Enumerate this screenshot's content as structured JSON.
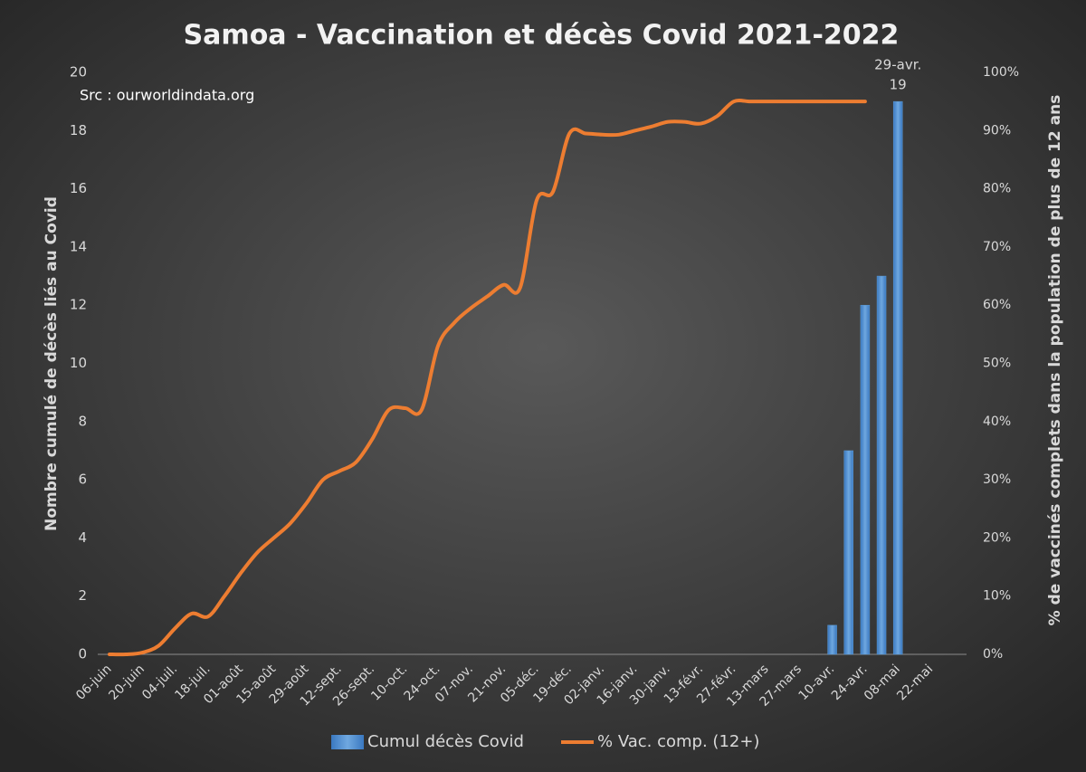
{
  "chart_data": {
    "type": "bar-line",
    "title": "Samoa - Vaccination et décès Covid 2021-2022",
    "subtitle": "Src : ourworldindata.org",
    "y_label": "Nombre cumulé de décès liés au Covid",
    "y2_label": "% de vaccinés complets dans  la population de plus de 12 ans",
    "annotation": "29-avr.",
    "categories": [
      "06-juin",
      null,
      "20-juin",
      null,
      "04-juil.",
      null,
      "18-juil.",
      null,
      "01-août",
      null,
      "15-août",
      null,
      "29-août",
      null,
      "12-sept.",
      null,
      "26-sept.",
      null,
      "10-oct.",
      null,
      "24-oct.",
      null,
      "07-nov.",
      null,
      "21-nov.",
      null,
      "05-déc.",
      null,
      "19-déc.",
      null,
      "02-janv.",
      null,
      "16-janv.",
      null,
      "30-janv.",
      null,
      "13-févr.",
      null,
      "27-févr.",
      null,
      "13-mars",
      null,
      "27-mars",
      null,
      "10-avr.",
      null,
      "24-avr.",
      null,
      "08-mai",
      null,
      "22-mai",
      null
    ],
    "series": [
      {
        "name": "Cumul décès Covid",
        "type": "bar",
        "color": "#5b9bd5",
        "values": [
          null,
          null,
          null,
          null,
          null,
          null,
          null,
          null,
          null,
          null,
          null,
          null,
          null,
          null,
          null,
          null,
          null,
          null,
          null,
          null,
          null,
          null,
          null,
          null,
          null,
          null,
          null,
          null,
          null,
          null,
          null,
          null,
          null,
          null,
          null,
          null,
          null,
          null,
          null,
          null,
          null,
          null,
          null,
          null,
          1,
          7,
          12,
          13,
          19,
          null,
          null,
          null
        ]
      },
      {
        "name": "% Vac. comp. (12+)",
        "type": "line",
        "axis": "y2",
        "color": "#ed7d31",
        "values": [
          0,
          0,
          0.3,
          1.5,
          4.5,
          7,
          6.5,
          10,
          14,
          17.5,
          20,
          22.5,
          26,
          30,
          31.5,
          33,
          37,
          42,
          42.3,
          42,
          53,
          57,
          59.5,
          61.5,
          63.5,
          63,
          78,
          79.5,
          89.5,
          89.5,
          89.3,
          89.3,
          90,
          90.7,
          91.5,
          91.5,
          91.2,
          92.5,
          95,
          95,
          95,
          95,
          95,
          95,
          95,
          95,
          95,
          null,
          null,
          null,
          null,
          null
        ]
      }
    ],
    "ylim": [
      0,
      20
    ],
    "yticks": [
      0,
      2,
      4,
      6,
      8,
      10,
      12,
      14,
      16,
      18,
      20
    ],
    "y2lim": [
      0,
      100
    ],
    "y2ticks": [
      {
        "value": 0,
        "label": "0%"
      },
      {
        "value": 10,
        "label": "10%"
      },
      {
        "value": 20,
        "label": "20%"
      },
      {
        "value": 30,
        "label": "30%"
      },
      {
        "value": 40,
        "label": "40%"
      },
      {
        "value": 50,
        "label": "50%"
      },
      {
        "value": 60,
        "label": "60%"
      },
      {
        "value": 70,
        "label": "70%"
      },
      {
        "value": 80,
        "label": "80%"
      },
      {
        "value": 90,
        "label": "90%"
      },
      {
        "value": 100,
        "label": "100%"
      }
    ],
    "grid": false,
    "legend": "bottom"
  }
}
